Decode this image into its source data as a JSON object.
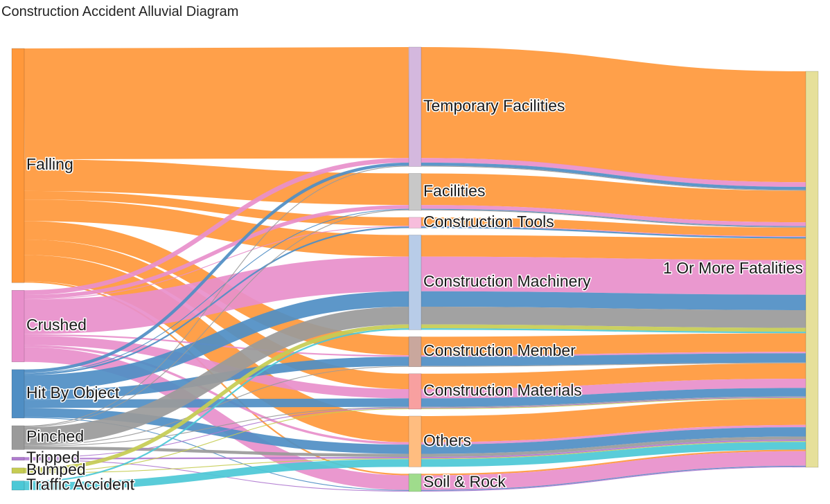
{
  "title": "Construction Accident Alluvial Diagram",
  "colors": {
    "Falling": "#ff983b",
    "Crushed": "#e88fcb",
    "Hit By Object": "#4f8ec4",
    "Pinched": "#9a9a9a",
    "Tripped": "#b07ad0",
    "Bumped": "#c6cc52",
    "Traffic Accident": "#4cc8d6",
    "Temporary Facilities": "#d4b8de",
    "Facilities": "#c8c8c8",
    "Construction Tools": "#f7bddc",
    "Construction Machinery": "#b8cce8",
    "Construction Member": "#c9a79d",
    "Construction Materials": "#f8a0a0",
    "Others": "#ffbd80",
    "Soil & Rock": "#9fdc8c",
    "1 Or More Fatalities": "#e6e09a"
  },
  "stages": [
    [
      "Falling",
      "Crushed",
      "Hit By Object",
      "Pinched",
      "Tripped",
      "Bumped",
      "Traffic Accident"
    ],
    [
      "Temporary Facilities",
      "Facilities",
      "Construction Tools",
      "Construction Machinery",
      "Construction Member",
      "Construction Materials",
      "Others",
      "Soil & Rock"
    ],
    [
      "1 Or More Fatalities"
    ]
  ],
  "flows": [
    {
      "source": "Falling",
      "target": "Temporary Facilities",
      "value": 144
    },
    {
      "source": "Falling",
      "target": "Facilities",
      "value": 41
    },
    {
      "source": "Falling",
      "target": "Construction Tools",
      "value": 11
    },
    {
      "source": "Falling",
      "target": "Construction Machinery",
      "value": 28
    },
    {
      "source": "Falling",
      "target": "Construction Member",
      "value": 24
    },
    {
      "source": "Falling",
      "target": "Construction Materials",
      "value": 20
    },
    {
      "source": "Falling",
      "target": "Others",
      "value": 34
    },
    {
      "source": "Falling",
      "target": "Soil & Rock",
      "value": 2
    },
    {
      "source": "Crushed",
      "target": "Temporary Facilities",
      "value": 6
    },
    {
      "source": "Crushed",
      "target": "Facilities",
      "value": 5
    },
    {
      "source": "Crushed",
      "target": "Construction Tools",
      "value": 1
    },
    {
      "source": "Crushed",
      "target": "Construction Machinery",
      "value": 45
    },
    {
      "source": "Crushed",
      "target": "Construction Member",
      "value": 2
    },
    {
      "source": "Crushed",
      "target": "Construction Materials",
      "value": 12
    },
    {
      "source": "Crushed",
      "target": "Others",
      "value": 3
    },
    {
      "source": "Crushed",
      "target": "Soil & Rock",
      "value": 19
    },
    {
      "source": "Hit By Object",
      "target": "Temporary Facilities",
      "value": 4
    },
    {
      "source": "Hit By Object",
      "target": "Facilities",
      "value": 1
    },
    {
      "source": "Hit By Object",
      "target": "Construction Tools",
      "value": 2
    },
    {
      "source": "Hit By Object",
      "target": "Construction Machinery",
      "value": 20
    },
    {
      "source": "Hit By Object",
      "target": "Construction Member",
      "value": 12
    },
    {
      "source": "Hit By Object",
      "target": "Construction Materials",
      "value": 11
    },
    {
      "source": "Hit By Object",
      "target": "Others",
      "value": 12
    },
    {
      "source": "Hit By Object",
      "target": "Soil & Rock",
      "value": 1
    },
    {
      "source": "Pinched",
      "target": "Temporary Facilities",
      "value": 1
    },
    {
      "source": "Pinched",
      "target": "Facilities",
      "value": 1
    },
    {
      "source": "Pinched",
      "target": "Construction Machinery",
      "value": 23
    },
    {
      "source": "Pinched",
      "target": "Construction Member",
      "value": 1
    },
    {
      "source": "Pinched",
      "target": "Construction Materials",
      "value": 1
    },
    {
      "source": "Pinched",
      "target": "Others",
      "value": 4
    },
    {
      "source": "Tripped",
      "target": "Construction Materials",
      "value": 1
    },
    {
      "source": "Tripped",
      "target": "Others",
      "value": 2
    },
    {
      "source": "Tripped",
      "target": "Soil & Rock",
      "value": 1
    },
    {
      "source": "Bumped",
      "target": "Construction Machinery",
      "value": 5
    },
    {
      "source": "Bumped",
      "target": "Construction Materials",
      "value": 1
    },
    {
      "source": "Bumped",
      "target": "Others",
      "value": 1
    },
    {
      "source": "Traffic Accident",
      "target": "Construction Machinery",
      "value": 2
    },
    {
      "source": "Traffic Accident",
      "target": "Others",
      "value": 10
    },
    {
      "source": "Temporary Facilities",
      "target": "1 Or More Fatalities",
      "value": 155
    },
    {
      "source": "Facilities",
      "target": "1 Or More Fatalities",
      "value": 48
    },
    {
      "source": "Construction Tools",
      "target": "1 Or More Fatalities",
      "value": 14
    },
    {
      "source": "Construction Machinery",
      "target": "1 Or More Fatalities",
      "value": 123
    },
    {
      "source": "Construction Member",
      "target": "1 Or More Fatalities",
      "value": 39
    },
    {
      "source": "Construction Materials",
      "target": "1 Or More Fatalities",
      "value": 46
    },
    {
      "source": "Others",
      "target": "1 Or More Fatalities",
      "value": 66
    },
    {
      "source": "Soil & Rock",
      "target": "1 Or More Fatalities",
      "value": 23
    }
  ]
}
